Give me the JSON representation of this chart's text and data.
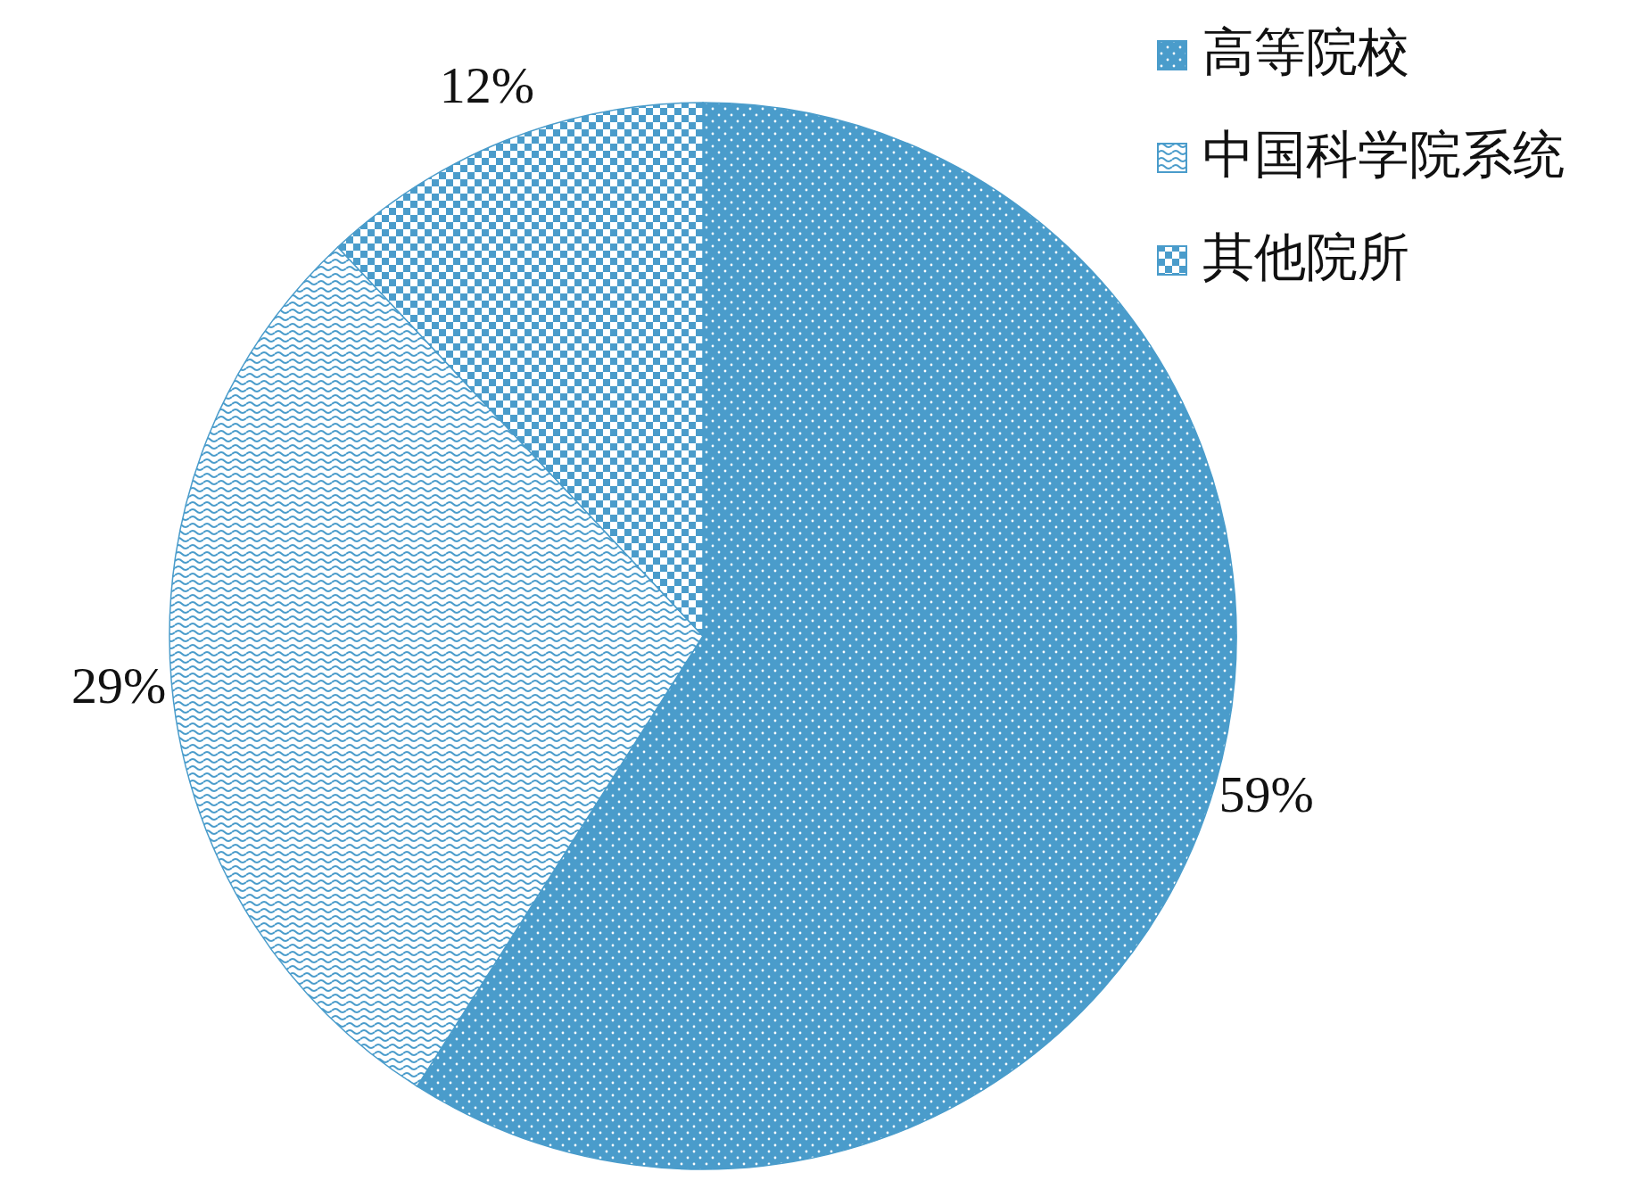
{
  "chart_data": {
    "type": "pie",
    "categories": [
      "高等院校",
      "中国科学院系统",
      "其他院所"
    ],
    "values": [
      59,
      29,
      12
    ],
    "colors": [
      "#4a9ccb",
      "#4a9ccb",
      "#4a9ccb"
    ],
    "legend": "top right",
    "value_labels": [
      "59%",
      "29%",
      "12%"
    ]
  }
}
